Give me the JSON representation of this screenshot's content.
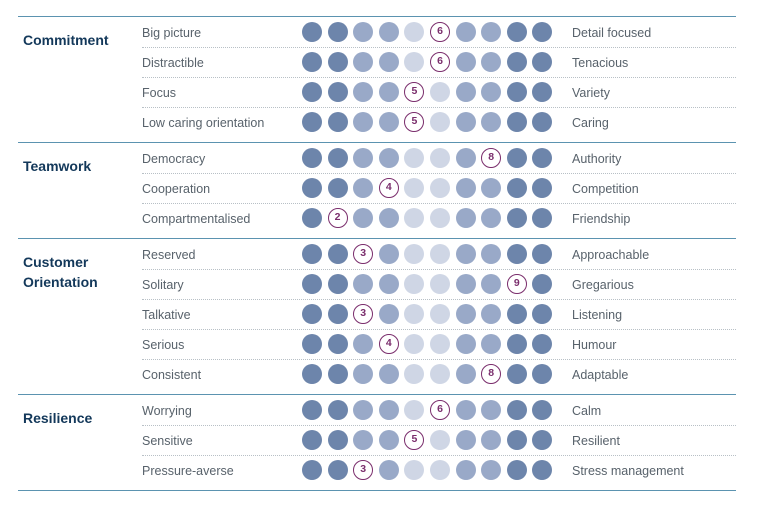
{
  "colors": {
    "dot_shades": [
      "#6d85ab",
      "#6d85ab",
      "#99a9c8",
      "#99a9c8",
      "#cfd6e5",
      "#cfd6e5",
      "#99a9c8",
      "#99a9c8",
      "#6d85ab",
      "#6d85ab"
    ],
    "marker": "#7a2d6c",
    "rule": "#5b93b0",
    "category_text": "#13385a",
    "label_text": "#58626b"
  },
  "categories": [
    {
      "title": "Commitment",
      "rows": [
        {
          "left": "Big picture",
          "right": "Detail focused",
          "score": 6
        },
        {
          "left": "Distractible",
          "right": "Tenacious",
          "score": 6
        },
        {
          "left": "Focus",
          "right": "Variety",
          "score": 5
        },
        {
          "left": "Low caring orientation",
          "right": "Caring",
          "score": 5
        }
      ]
    },
    {
      "title": "Teamwork",
      "rows": [
        {
          "left": "Democracy",
          "right": "Authority",
          "score": 8
        },
        {
          "left": "Cooperation",
          "right": "Competition",
          "score": 4
        },
        {
          "left": "Compartmentalised",
          "right": "Friendship",
          "score": 2
        }
      ]
    },
    {
      "title": "Customer\nOrientation",
      "rows": [
        {
          "left": "Reserved",
          "right": "Approachable",
          "score": 3
        },
        {
          "left": "Solitary",
          "right": "Gregarious",
          "score": 9
        },
        {
          "left": "Talkative",
          "right": "Listening",
          "score": 3
        },
        {
          "left": "Serious",
          "right": "Humour",
          "score": 4
        },
        {
          "left": "Consistent",
          "right": "Adaptable",
          "score": 8
        }
      ]
    },
    {
      "title": "Resilience",
      "rows": [
        {
          "left": "Worrying",
          "right": "Calm",
          "score": 6
        },
        {
          "left": "Sensitive",
          "right": "Resilient",
          "score": 5
        },
        {
          "left": "Pressure-averse",
          "right": "Stress management",
          "score": 3
        }
      ]
    }
  ]
}
